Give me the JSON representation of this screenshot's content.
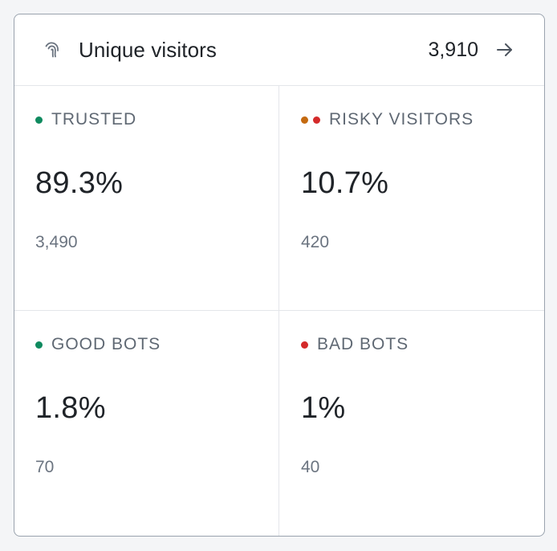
{
  "header": {
    "title": "Unique visitors",
    "count": "3,910",
    "icon": "fingerprint-icon",
    "arrow_icon": "arrow-right-icon"
  },
  "colors": {
    "green": "#0f8a5f",
    "orange": "#c46a10",
    "red": "#d42a2a"
  },
  "metrics": [
    {
      "label": "TRUSTED",
      "percent": "89.3%",
      "count": "3,490",
      "dots": [
        "green"
      ]
    },
    {
      "label": "RISKY VISITORS",
      "percent": "10.7%",
      "count": "420",
      "dots": [
        "orange",
        "red"
      ]
    },
    {
      "label": "GOOD BOTS",
      "percent": "1.8%",
      "count": "70",
      "dots": [
        "green"
      ]
    },
    {
      "label": "BAD BOTS",
      "percent": "1%",
      "count": "40",
      "dots": [
        "red"
      ]
    }
  ]
}
